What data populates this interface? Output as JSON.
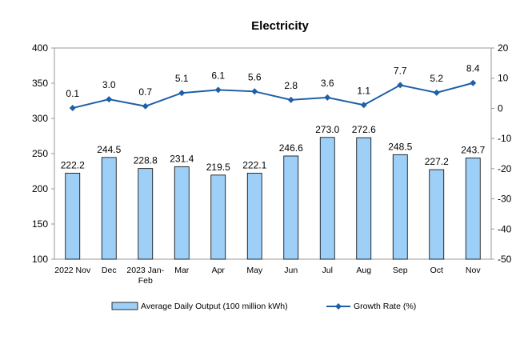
{
  "chart_data": {
    "type": "bar",
    "title": "Electricity",
    "categories": [
      [
        "2022 Nov"
      ],
      [
        "Dec"
      ],
      [
        "2023 Jan-",
        "Feb"
      ],
      [
        "Mar"
      ],
      [
        "Apr"
      ],
      [
        "May"
      ],
      [
        "Jun"
      ],
      [
        "Jul"
      ],
      [
        "Aug"
      ],
      [
        "Sep"
      ],
      [
        "Oct"
      ],
      [
        "Nov"
      ]
    ],
    "series": [
      {
        "name": "Average Daily Output (100 million kWh)",
        "type": "bar",
        "axis": "left",
        "values": [
          222.2,
          244.5,
          228.8,
          231.4,
          219.5,
          222.1,
          246.6,
          273.0,
          272.6,
          248.5,
          227.2,
          243.7
        ],
        "labels": [
          "222.2",
          "244.5",
          "228.8",
          "231.4",
          "219.5",
          "222.1",
          "246.6",
          "273.0",
          "272.6",
          "248.5",
          "227.2",
          "243.7"
        ],
        "color": "#9ECFF7",
        "edge_color": "#000000"
      },
      {
        "name": "Growth Rate (%)",
        "type": "line",
        "axis": "right",
        "values": [
          0.1,
          3.0,
          0.7,
          5.1,
          6.1,
          5.6,
          2.8,
          3.6,
          1.1,
          7.7,
          5.2,
          8.4
        ],
        "labels": [
          "0.1",
          "3.0",
          "0.7",
          "5.1",
          "6.1",
          "5.6",
          "2.8",
          "3.6",
          "1.1",
          "7.7",
          "5.2",
          "8.4"
        ],
        "color": "#1F5FA8"
      }
    ],
    "y_left": {
      "min": 100,
      "max": 400,
      "ticks": [
        100,
        150,
        200,
        250,
        300,
        350,
        400
      ]
    },
    "y_right": {
      "min": -50,
      "max": 20,
      "ticks": [
        -50,
        -40,
        -30,
        -20,
        -10,
        0,
        10,
        20
      ]
    },
    "grid": false,
    "legend_position": "bottom"
  }
}
